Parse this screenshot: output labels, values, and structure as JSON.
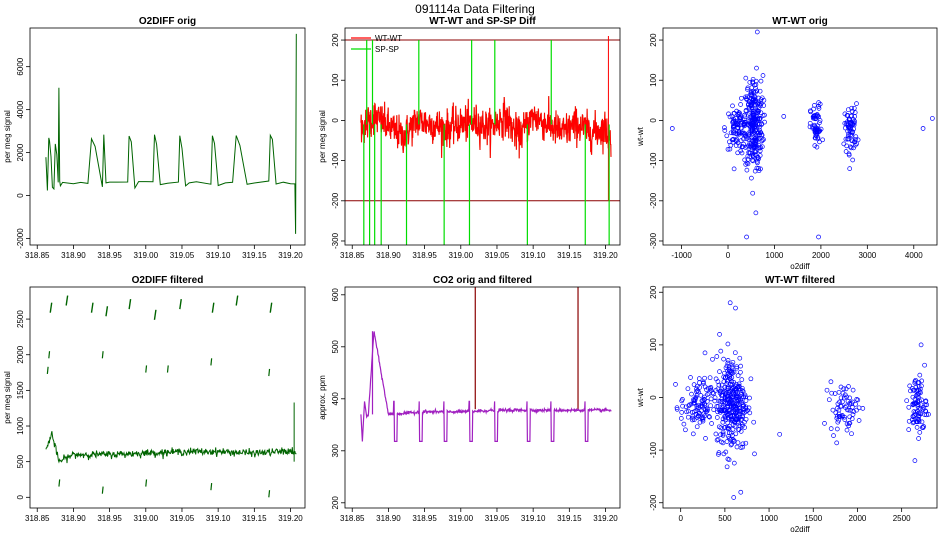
{
  "figure": {
    "title": "091114a   Data Filtering"
  },
  "chart_data": [
    {
      "id": "p1",
      "type": "line",
      "title": "O2DIFF orig",
      "xlabel": "",
      "ylabel": "per meg signal",
      "xlim": [
        318.84,
        319.22
      ],
      "ylim": [
        -2300,
        7800
      ],
      "xticks": [
        318.85,
        318.9,
        318.95,
        319.0,
        319.05,
        319.1,
        319.15,
        319.2
      ],
      "xtick_labels": [
        "318.85",
        "318.90",
        "318.95",
        "319.00",
        "319.05",
        "319.10",
        "319.15",
        "319.20"
      ],
      "yticks": [
        -2000,
        0,
        2000,
        4000,
        6000
      ],
      "ytick_labels": [
        "-2000",
        "0",
        "2000",
        "4000",
        "6000"
      ],
      "grid": false,
      "series": [
        {
          "color": "#006400",
          "kind": "o2orig",
          "x": [
            318.862,
            318.864,
            318.866,
            318.867,
            318.869,
            318.871,
            318.873,
            318.875,
            318.877,
            318.879,
            318.88,
            318.881,
            318.882,
            318.885,
            318.9,
            318.91,
            318.92,
            318.925,
            318.93,
            318.94,
            318.942,
            318.945,
            318.95,
            318.96,
            318.975,
            318.977,
            318.98,
            318.985,
            318.99,
            319.0,
            319.01,
            319.012,
            319.015,
            319.02,
            319.03,
            319.045,
            319.047,
            319.05,
            319.055,
            319.06,
            319.07,
            319.09,
            319.092,
            319.095,
            319.1,
            319.11,
            319.12,
            319.125,
            319.13,
            319.14,
            319.15,
            319.17,
            319.172,
            319.175,
            319.18,
            319.19,
            319.2,
            319.206,
            319.207,
            319.208
          ],
          "y": [
            1800,
            200,
            2700,
            2500,
            1800,
            400,
            300,
            2400,
            1900,
            600,
            5100,
            700,
            500,
            600,
            600,
            600,
            600,
            2700,
            2300,
            400,
            2800,
            600,
            600,
            600,
            600,
            2800,
            2500,
            400,
            600,
            600,
            600,
            2800,
            2400,
            500,
            600,
            600,
            2800,
            2300,
            500,
            600,
            600,
            600,
            2800,
            2500,
            500,
            600,
            600,
            2800,
            2400,
            500,
            600,
            600,
            2800,
            2600,
            500,
            600,
            600,
            600,
            -1800,
            7500
          ]
        }
      ]
    },
    {
      "id": "p2",
      "type": "line",
      "title": "WT-WT and SP-SP Diff",
      "xlabel": "",
      "ylabel": "per meg signal",
      "xlim": [
        318.84,
        319.22
      ],
      "ylim": [
        -310,
        230
      ],
      "xticks": [
        318.85,
        318.9,
        318.95,
        319.0,
        319.05,
        319.1,
        319.15,
        319.2
      ],
      "xtick_labels": [
        "318.85",
        "318.90",
        "318.95",
        "319.00",
        "319.05",
        "319.10",
        "319.15",
        "319.20"
      ],
      "yticks": [
        -300,
        -200,
        -100,
        0,
        100,
        200
      ],
      "ytick_labels": [
        "-300",
        "-200",
        "-100",
        "0",
        "100",
        "200"
      ],
      "hlines": [
        200,
        -200
      ],
      "hline_color": "#8b0000",
      "legend": {
        "placement": "top-left",
        "entries": [
          "WT-WT",
          "SP-SP"
        ]
      },
      "grid": false,
      "series": [
        {
          "name": "WT-WT",
          "color": "#ff0000",
          "kind": "noise",
          "x": [
            318.862,
            318.88,
            318.9,
            318.92,
            318.94,
            318.96,
            318.98,
            319.0,
            319.02,
            319.04,
            319.06,
            319.08,
            319.1,
            319.12,
            319.14,
            319.16,
            319.18,
            319.2,
            319.208
          ],
          "y": [
            -20,
            10,
            -15,
            -40,
            0,
            -10,
            -20,
            -10,
            -5,
            -20,
            10,
            -40,
            10,
            -10,
            -30,
            -10,
            -30,
            -20,
            -60
          ]
        },
        {
          "name": "SP-SP",
          "color": "#00dd00",
          "kind": "spikes",
          "x": [
            318.866,
            318.87,
            318.874,
            318.878,
            318.881,
            318.89,
            318.925,
            318.942,
            318.977,
            319.012,
            319.015,
            319.047,
            319.092,
            319.125,
            319.172,
            319.205
          ],
          "y": [
            -310,
            200,
            -310,
            200,
            -310,
            -310,
            -310,
            200,
            -310,
            -310,
            200,
            200,
            -310,
            200,
            -310,
            -310
          ]
        }
      ]
    },
    {
      "id": "p3",
      "type": "scatter",
      "title": "WT-WT orig",
      "xlabel": "o2diff",
      "ylabel": "wt-wt",
      "xlim": [
        -1400,
        4500
      ],
      "ylim": [
        -310,
        230
      ],
      "xticks": [
        -1000,
        0,
        1000,
        2000,
        3000,
        4000
      ],
      "xtick_labels": [
        "-1000",
        "0",
        "1000",
        "2000",
        "3000",
        "4000"
      ],
      "yticks": [
        -300,
        -200,
        -100,
        0,
        100,
        200
      ],
      "ytick_labels": [
        "-300",
        "-200",
        "-100",
        "0",
        "100",
        "200"
      ],
      "grid": false,
      "clusters": [
        {
          "cx": 200,
          "cy": -20,
          "sx": 120,
          "sy": 25,
          "n": 90
        },
        {
          "cx": 550,
          "cy": -10,
          "sx": 100,
          "sy": 60,
          "n": 260
        },
        {
          "cx": 1900,
          "cy": -20,
          "sx": 60,
          "sy": 30,
          "n": 60
        },
        {
          "cx": 2650,
          "cy": -20,
          "sx": 70,
          "sy": 30,
          "n": 70
        }
      ],
      "outliers": [
        [
          -1200,
          -20
        ],
        [
          4200,
          -20
        ],
        [
          4400,
          5
        ],
        [
          1950,
          -290
        ],
        [
          400,
          -290
        ],
        [
          630,
          220
        ],
        [
          1200,
          10
        ],
        [
          2620,
          -120
        ],
        [
          600,
          -230
        ]
      ],
      "color": "#0000ff"
    },
    {
      "id": "p4",
      "type": "scatter",
      "title": "O2DIFF filtered",
      "xlabel": "",
      "ylabel": "per meg signal",
      "xlim": [
        318.84,
        319.22
      ],
      "ylim": [
        -150,
        2950
      ],
      "xticks": [
        318.85,
        318.9,
        318.95,
        319.0,
        319.05,
        319.1,
        319.15,
        319.2
      ],
      "xtick_labels": [
        "318.85",
        "318.90",
        "318.95",
        "319.00",
        "319.05",
        "319.10",
        "319.15",
        "319.20"
      ],
      "yticks": [
        0,
        500,
        1000,
        1500,
        2000,
        2500
      ],
      "ytick_labels": [
        "0",
        "500",
        "1000",
        "1500",
        "2000",
        "2500"
      ],
      "grid": false,
      "line": {
        "x": [
          318.862,
          318.87,
          318.875,
          318.88,
          318.9,
          318.95,
          319.0,
          319.05,
          319.1,
          319.15,
          319.2,
          319.208
        ],
        "y": [
          650,
          900,
          700,
          500,
          600,
          600,
          620,
          640,
          640,
          620,
          650,
          600
        ]
      },
      "cluster_x": [
        318.868,
        318.89,
        318.925,
        318.945,
        318.977,
        319.012,
        319.047,
        319.092,
        319.125,
        319.172
      ],
      "cluster_y": [
        2650,
        2750,
        2650,
        2600,
        2700,
        2550,
        2700,
        2650,
        2750,
        2650
      ],
      "extra": [
        [
          318.864,
          1780
        ],
        [
          318.866,
          2000
        ],
        [
          318.94,
          2000
        ],
        [
          319.0,
          1800
        ],
        [
          319.03,
          1800
        ],
        [
          319.09,
          1900
        ],
        [
          319.17,
          1750
        ],
        [
          318.88,
          200
        ],
        [
          318.94,
          100
        ],
        [
          319.0,
          200
        ],
        [
          319.09,
          150
        ],
        [
          319.17,
          50
        ]
      ],
      "color": "#006400"
    },
    {
      "id": "p5",
      "type": "line",
      "title": "CO2 orig and filtered",
      "xlabel": "",
      "ylabel": "approx. ppm",
      "xlim": [
        318.84,
        319.22
      ],
      "ylim": [
        190,
        615
      ],
      "xticks": [
        318.85,
        318.9,
        318.95,
        319.0,
        319.05,
        319.1,
        319.15,
        319.2
      ],
      "xtick_labels": [
        "318.85",
        "318.90",
        "318.95",
        "319.00",
        "319.05",
        "319.10",
        "319.15",
        "319.20"
      ],
      "yticks": [
        200,
        300,
        400,
        500,
        600
      ],
      "ytick_labels": [
        "200",
        "300",
        "400",
        "500",
        "600"
      ],
      "grid": false,
      "series": [
        {
          "color": "#8b0000",
          "kind": "spike",
          "x": [
            319.02,
            319.162
          ],
          "y": [
            615,
            615
          ]
        },
        {
          "color": "#a020c0",
          "kind": "co2",
          "x": [
            318.862,
            318.865,
            318.868,
            318.872,
            318.88,
            318.9,
            318.95,
            319.0,
            319.05,
            319.1,
            319.15,
            319.2,
            319.208
          ],
          "y": [
            370,
            315,
            395,
            365,
            530,
            370,
            375,
            375,
            378,
            378,
            378,
            378,
            378
          ]
        }
      ]
    },
    {
      "id": "p6",
      "type": "scatter",
      "title": "WT-WT filtered",
      "xlabel": "o2diff",
      "ylabel": "wt-wt",
      "xlim": [
        -200,
        2900
      ],
      "ylim": [
        -210,
        210
      ],
      "xticks": [
        0,
        500,
        1000,
        1500,
        2000,
        2500
      ],
      "xtick_labels": [
        "0",
        "500",
        "1000",
        "1500",
        "2000",
        "2500"
      ],
      "yticks": [
        -200,
        -100,
        0,
        100,
        200
      ],
      "ytick_labels": [
        "-200",
        "-100",
        "0",
        "100",
        "200"
      ],
      "grid": false,
      "clusters": [
        {
          "cx": 200,
          "cy": -15,
          "sx": 100,
          "sy": 25,
          "n": 110
        },
        {
          "cx": 580,
          "cy": -10,
          "sx": 90,
          "sy": 45,
          "n": 320
        },
        {
          "cx": 1850,
          "cy": -20,
          "sx": 80,
          "sy": 22,
          "n": 70
        },
        {
          "cx": 2680,
          "cy": -15,
          "sx": 50,
          "sy": 28,
          "n": 90
        }
      ],
      "outliers": [
        [
          560,
          180
        ],
        [
          620,
          170
        ],
        [
          440,
          120
        ],
        [
          1120,
          -70
        ],
        [
          2650,
          -120
        ],
        [
          600,
          -190
        ],
        [
          680,
          -180
        ],
        [
          1700,
          30
        ],
        [
          2720,
          100
        ]
      ],
      "color": "#0000ff"
    }
  ]
}
